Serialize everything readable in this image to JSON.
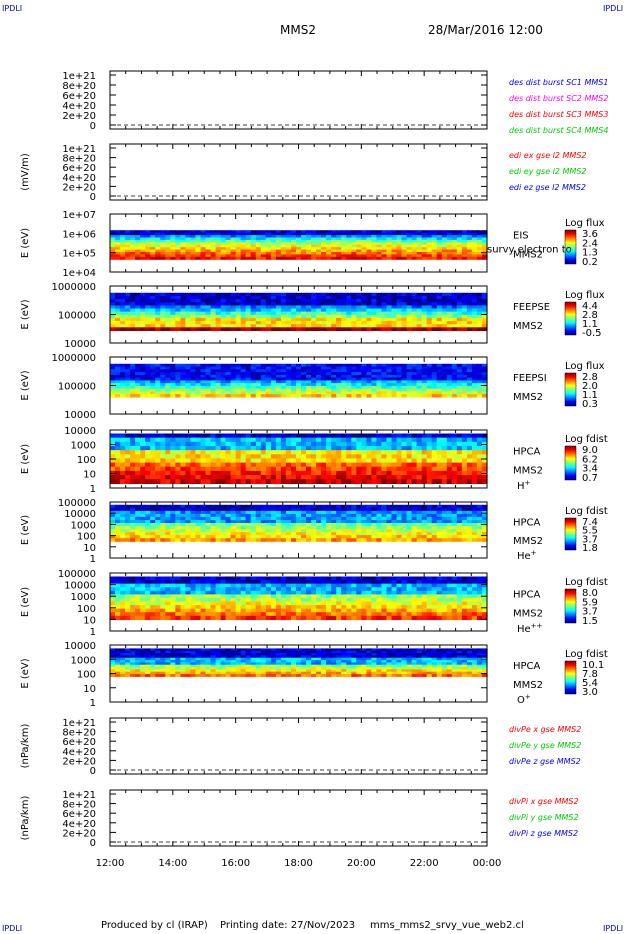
{
  "corner_label": "IPDLI",
  "header": {
    "spacecraft": "MMS2",
    "datetime": "28/Mar/2016 12:00"
  },
  "footer": {
    "produced_by": "Produced by cl (IRAP)",
    "printing_date": "Printing date: 27/Nov/2023",
    "script_name": "mms_mms2_srvy_vue_web2.cl"
  },
  "colors": {
    "line_red": "#ff0000",
    "line_green": "#00cc00",
    "line_blue": "#0000ff",
    "line_magenta": "#ff00ff"
  },
  "chart_data": [
    {
      "type": "line",
      "x_ticks": [
        "12:00",
        "14:00",
        "16:00",
        "18:00",
        "20:00",
        "22:00",
        "00:00"
      ],
      "ylabel": "",
      "y_ticks": [
        "0",
        "2e+20",
        "4e+20",
        "6e+20",
        "8e+20",
        "1e+21"
      ],
      "ylim": [
        0,
        1e+21
      ],
      "series": [
        {
          "name": "des dist burst SC1 MMS1",
          "color": "#0000ff"
        },
        {
          "name": "des dist burst SC2 MMS2",
          "color": "#ff00ff"
        },
        {
          "name": "des dist burst SC3 MMS3",
          "color": "#ff0000"
        },
        {
          "name": "des dist burst SC4 MMS4",
          "color": "#00cc00"
        }
      ]
    },
    {
      "type": "line",
      "ylabel": "(mV/m)",
      "y_ticks": [
        "0",
        "2e+20",
        "4e+20",
        "6e+20",
        "8e+20",
        "1e+21"
      ],
      "ylim": [
        0,
        1e+21
      ],
      "series": [
        {
          "name": "edi ex gse l2 MMS2",
          "color": "#ff0000"
        },
        {
          "name": "edi ey gse l2 MMS2",
          "color": "#00cc00"
        },
        {
          "name": "edi ez gse l2 MMS2",
          "color": "#0000ff"
        }
      ]
    },
    {
      "type": "heatmap",
      "ylabel": "E (eV)",
      "y_ticks": [
        "1e+04",
        "1e+05",
        "1e+06",
        "1e+07"
      ],
      "instrument": [
        "EIS",
        "MMS2"
      ],
      "overlay_text": "survy electron to",
      "colorbar_title": "Log flux",
      "colorbar_ticks": [
        "3.6",
        "2.4",
        "1.3",
        "0.2"
      ]
    },
    {
      "type": "heatmap",
      "ylabel": "E (eV)",
      "y_ticks": [
        "10000",
        "100000",
        "1000000"
      ],
      "instrument": [
        "FEEPSE",
        "MMS2"
      ],
      "colorbar_title": "Log flux",
      "colorbar_ticks": [
        "4.4",
        "2.8",
        "1.1",
        "-0.5"
      ]
    },
    {
      "type": "heatmap",
      "ylabel": "E (eV)",
      "y_ticks": [
        "10000",
        "100000",
        "1000000"
      ],
      "instrument": [
        "FEEPSI",
        "MMS2"
      ],
      "colorbar_title": "Log flux",
      "colorbar_ticks": [
        "2.8",
        "2.0",
        "1.1",
        "0.3"
      ]
    },
    {
      "type": "heatmap",
      "ylabel": "E (eV)",
      "y_ticks": [
        "1",
        "10",
        "100",
        "1000",
        "10000"
      ],
      "instrument": [
        "HPCA",
        "MMS2"
      ],
      "species": "H",
      "species_sup": "+",
      "colorbar_title": "Log fdist",
      "colorbar_ticks": [
        "9.0",
        "6.2",
        "3.4",
        "0.7"
      ]
    },
    {
      "type": "heatmap",
      "ylabel": "E (eV)",
      "y_ticks": [
        "1",
        "10",
        "100",
        "1000",
        "10000",
        "100000"
      ],
      "instrument": [
        "HPCA",
        "MMS2"
      ],
      "species": "He",
      "species_sup": "+",
      "colorbar_title": "Log fdist",
      "colorbar_ticks": [
        "7.4",
        "5.5",
        "3.7",
        "1.8"
      ]
    },
    {
      "type": "heatmap",
      "ylabel": "E (eV)",
      "y_ticks": [
        "1",
        "10",
        "100",
        "1000",
        "10000",
        "100000"
      ],
      "instrument": [
        "HPCA",
        "MMS2"
      ],
      "species": "He",
      "species_sup": "++",
      "colorbar_title": "Log fdist",
      "colorbar_ticks": [
        "8.0",
        "5.9",
        "3.7",
        "1.5"
      ]
    },
    {
      "type": "heatmap",
      "ylabel": "E (eV)",
      "y_ticks": [
        "1",
        "10",
        "100",
        "1000",
        "10000"
      ],
      "instrument": [
        "HPCA",
        "MMS2"
      ],
      "species": "O",
      "species_sup": "+",
      "colorbar_title": "Log fdist",
      "colorbar_ticks": [
        "10.1",
        "7.8",
        "5.4",
        "3.0"
      ]
    },
    {
      "type": "line",
      "ylabel": "(nPa/km)",
      "y_ticks": [
        "0",
        "2e+20",
        "4e+20",
        "6e+20",
        "8e+20",
        "1e+21"
      ],
      "ylim": [
        0,
        1e+21
      ],
      "series": [
        {
          "name": "divPe x gse MMS2",
          "color": "#ff0000"
        },
        {
          "name": "divPe y gse MMS2",
          "color": "#00cc00"
        },
        {
          "name": "divPe z gse MMS2",
          "color": "#0000ff"
        }
      ]
    },
    {
      "type": "line",
      "ylabel": "(nPa/km)",
      "y_ticks": [
        "0",
        "2e+20",
        "4e+20",
        "6e+20",
        "8e+20",
        "1e+21"
      ],
      "ylim": [
        0,
        1e+21
      ],
      "series": [
        {
          "name": "divPi x gse MMS2",
          "color": "#ff0000"
        },
        {
          "name": "divPi y gse MMS2",
          "color": "#00cc00"
        },
        {
          "name": "divPi z gse MMS2",
          "color": "#0000ff"
        }
      ]
    }
  ]
}
